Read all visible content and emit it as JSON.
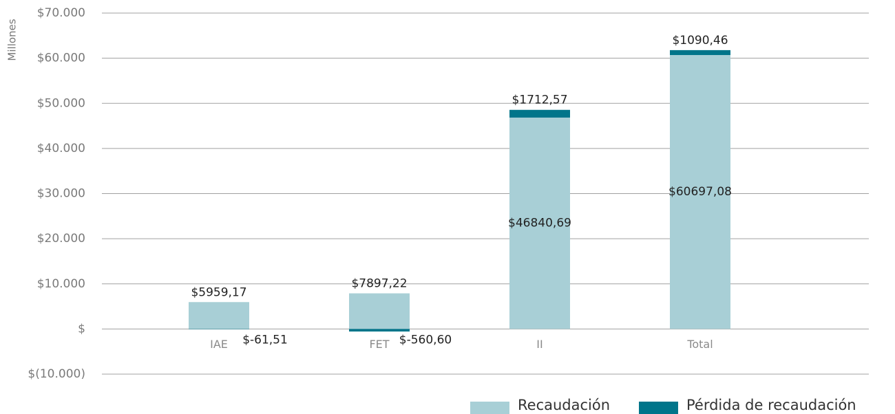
{
  "chart_data": {
    "type": "stacked_bar",
    "y_label": "Millones",
    "categories": [
      "IAE",
      "FET",
      "II",
      "Total"
    ],
    "series": [
      {
        "name": "Recaudación",
        "color": "#a8cfd6",
        "values": [
          5959.17,
          7897.22,
          46840.69,
          60697.08
        ],
        "value_labels": [
          "$5959,17",
          "$7897,22",
          "$46840,69",
          "$60697,08"
        ]
      },
      {
        "name": "Pérdida de recaudación",
        "color": "#00758a",
        "values": [
          -61.51,
          -560.6,
          1712.57,
          1090.46
        ],
        "value_labels": [
          "$-61,51",
          "$-560,60",
          "$1712,57",
          "$1090,46"
        ]
      }
    ],
    "ylim": [
      -10000,
      70000
    ],
    "yticks": [
      {
        "value": -10000,
        "label": "$(10.000)"
      },
      {
        "value": 0,
        "label": "$"
      },
      {
        "value": 10000,
        "label": "$10.000"
      },
      {
        "value": 20000,
        "label": "$20.000"
      },
      {
        "value": 30000,
        "label": "$30.000"
      },
      {
        "value": 40000,
        "label": "$40.000"
      },
      {
        "value": 50000,
        "label": "$50.000"
      },
      {
        "value": 60000,
        "label": "$60.000"
      },
      {
        "value": 70000,
        "label": "$70.000"
      }
    ],
    "grid": true
  }
}
